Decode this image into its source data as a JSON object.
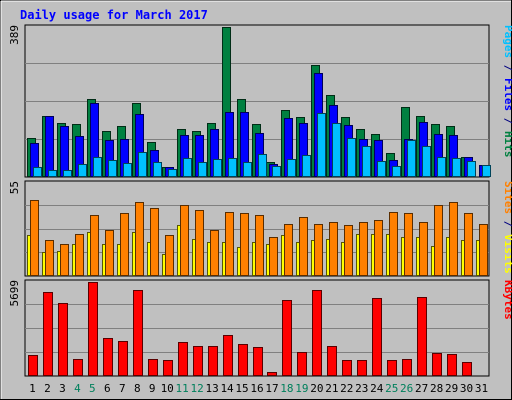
{
  "chart_data": {
    "type": "bar",
    "title": "Daily usage for March 2017",
    "categories": [
      "1",
      "2",
      "3",
      "4",
      "5",
      "6",
      "7",
      "8",
      "9",
      "10",
      "11",
      "12",
      "13",
      "14",
      "15",
      "16",
      "17",
      "18",
      "19",
      "20",
      "21",
      "22",
      "23",
      "24",
      "25",
      "26",
      "27",
      "28",
      "29",
      "30",
      "31"
    ],
    "weekend_days": [
      "4",
      "5",
      "11",
      "12",
      "18",
      "19",
      "25",
      "26"
    ],
    "grid": true,
    "panels": [
      {
        "name": "hits_files_pages",
        "ymax": 389,
        "max_label": "389",
        "legend_parts": [
          {
            "text": "Pages",
            "color": "#00c0ff"
          },
          {
            "text": " / ",
            "color": "#000080"
          },
          {
            "text": "Files",
            "color": "#0000ff"
          },
          {
            "text": " / ",
            "color": "#000080"
          },
          {
            "text": "Hits",
            "color": "#008040"
          }
        ],
        "series": [
          {
            "name": "Hits",
            "color": "#008040",
            "values": [
              100,
              158,
              140,
              137,
              203,
              119,
              132,
              191,
              90,
              27,
              124,
              120,
              141,
              389,
              202,
              137,
              38,
              175,
              155,
              291,
              213,
              155,
              124,
              112,
              62,
              182,
              157,
              137,
              131,
              52,
              null
            ]
          },
          {
            "name": "Files",
            "color": "#0000ff",
            "values": [
              88,
              158,
              132,
              106,
              191,
              97,
              98,
              163,
              70,
              27,
              109,
              109,
              124,
              168,
              168,
              115,
              35,
              154,
              140,
              271,
              188,
              135,
              98,
              96,
              43,
              98,
              143,
              112,
              109,
              52,
              32
            ]
          },
          {
            "name": "Pages",
            "color": "#00c0ff",
            "values": [
              26,
              18,
              18,
              33,
              52,
              45,
              37,
              66,
              40,
              22,
              50,
              38,
              46,
              50,
              38,
              60,
              28,
              47,
              57,
              165,
              141,
              102,
              80,
              42,
              28,
              97,
              81,
              51,
              50,
              42,
              32
            ]
          }
        ]
      },
      {
        "name": "visits_sites",
        "ymax": 55,
        "max_label": "55",
        "legend_parts": [
          {
            "text": "Sites",
            "color": "#ff8000"
          },
          {
            "text": " / ",
            "color": "#000080"
          },
          {
            "text": "Visits",
            "color": "#ffff00"
          }
        ],
        "series": [
          {
            "name": "Visits",
            "color": "#ffff00",
            "values": [
              24,
              14,
              15,
              19,
              26,
              19,
              19,
              26,
              20,
              13,
              30,
              22,
              20,
              20,
              17,
              20,
              19,
              24,
              20,
              21,
              22,
              20,
              25,
              25,
              25,
              23,
              23,
              18,
              23,
              21,
              21
            ]
          },
          {
            "name": "Sites",
            "color": "#ff8000",
            "values": [
              45,
              21,
              19,
              25,
              36,
              27,
              37,
              44,
              40,
              24,
              42,
              39,
              27,
              38,
              37,
              36,
              23,
              31,
              35,
              31,
              32,
              30,
              32,
              33,
              38,
              37,
              32,
              42,
              44,
              37,
              31
            ]
          }
        ]
      },
      {
        "name": "kbytes",
        "ymax": 5699,
        "max_label": "5699",
        "legend_parts": [
          {
            "text": "KBytes",
            "color": "#ff0000"
          }
        ],
        "series": [
          {
            "name": "KBytes",
            "color": "#ff0000",
            "values": [
              1290,
              5101,
              4436,
              1010,
              5699,
              2311,
              2104,
              5218,
              1010,
              980,
              2044,
              1842,
              1842,
              2516,
              1920,
              1770,
              220,
              4606,
              1453,
              5218,
              1808,
              992,
              983,
              4737,
              992,
              1010,
              4817,
              1403,
              1340,
              859,
              null
            ]
          }
        ]
      }
    ]
  }
}
